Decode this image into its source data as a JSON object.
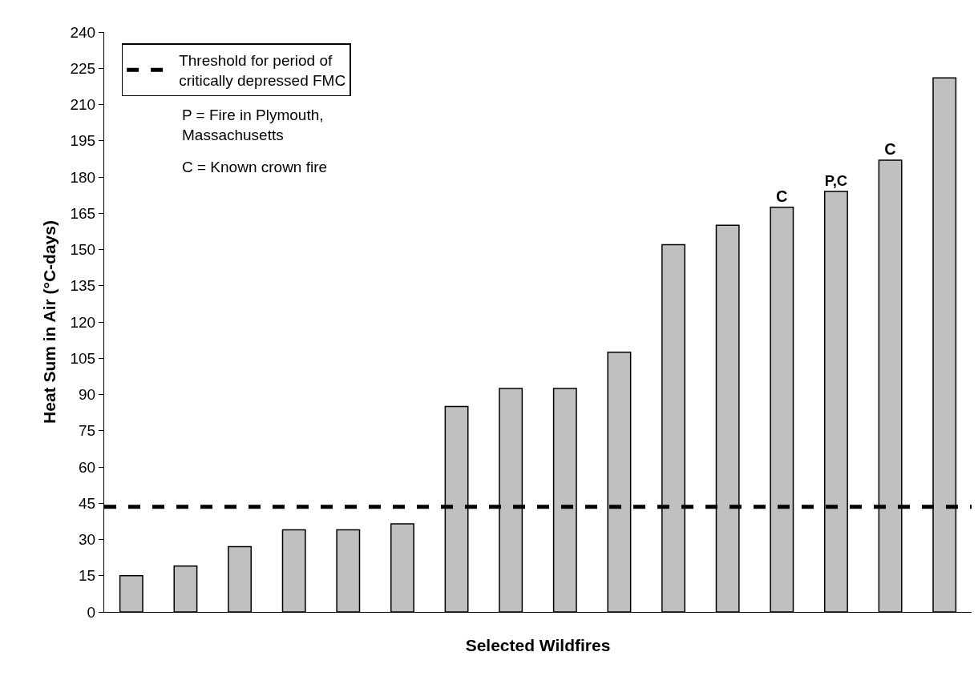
{
  "chart_data": {
    "type": "bar",
    "xlabel": "Selected Wildfires",
    "ylabel": "Heat Sum in Air (°C-days)",
    "categories": [
      null,
      null,
      null,
      null,
      null,
      null,
      null,
      null,
      null,
      null,
      null,
      null,
      null,
      null,
      null,
      null
    ],
    "series": [
      {
        "color": "#c0c0c0",
        "values": [
          15,
          19,
          27,
          34,
          34,
          36.5,
          85,
          92.5,
          92.5,
          107.5,
          152,
          160,
          167.5,
          174,
          187,
          221
        ],
        "value_labels": [
          null,
          null,
          null,
          null,
          null,
          null,
          null,
          null,
          null,
          null,
          null,
          null,
          "C",
          "P,C",
          "C",
          null
        ]
      }
    ],
    "ylim": [
      0,
      240
    ],
    "yticks": [
      0,
      15,
      30,
      45,
      60,
      75,
      90,
      105,
      120,
      135,
      150,
      165,
      180,
      195,
      210,
      225,
      240
    ],
    "ref_lines": [
      {
        "axis": "y",
        "value": 43.5,
        "label": "Threshold for period of critically depressed FMC",
        "color": "#000000",
        "line_style": "dashed"
      }
    ],
    "annotations": [
      "P = Fire in Plymouth, Massachusetts",
      "C = Known crown fire"
    ],
    "legend": "top left",
    "tick_labels": "y"
  }
}
